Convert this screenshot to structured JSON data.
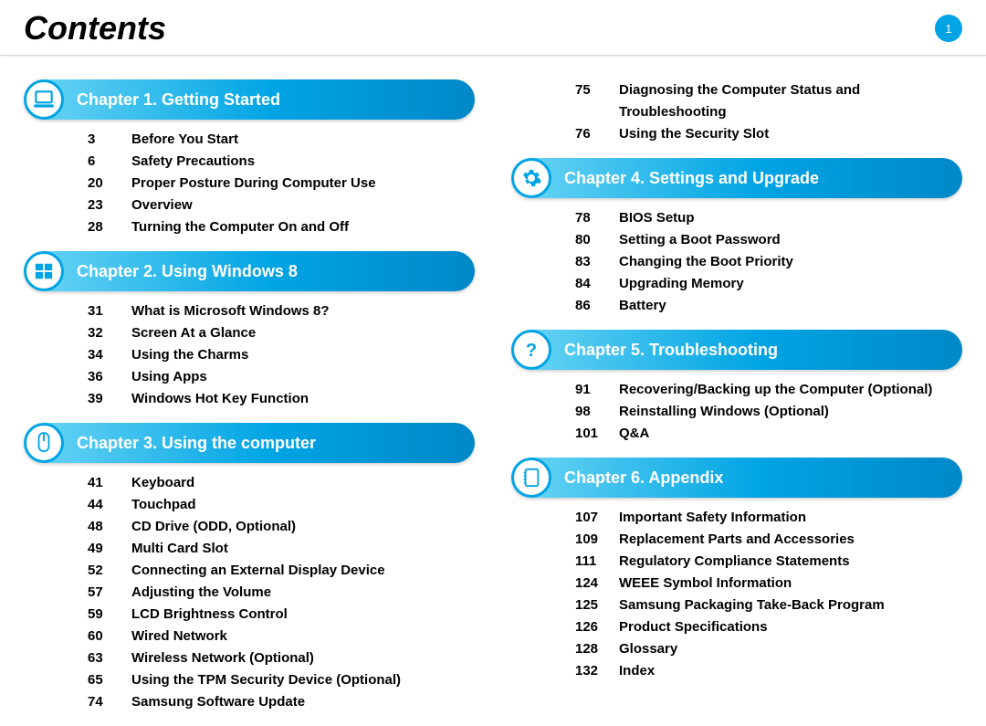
{
  "page_title": "Contents",
  "page_number": "1",
  "colors": {
    "accent": "#00a4e4",
    "bar_gradient_start": "#6dd6f5",
    "bar_gradient_mid": "#00a4e4",
    "bar_gradient_end": "#0088c8",
    "text": "#000000",
    "divider": "#d5d5d5",
    "background": "#ffffff"
  },
  "chapters": {
    "ch1": {
      "title": "Chapter 1. Getting Started",
      "icon": "laptop",
      "entries": [
        {
          "page": "3",
          "label": "Before You Start"
        },
        {
          "page": "6",
          "label": "Safety Precautions"
        },
        {
          "page": "20",
          "label": "Proper Posture During Computer Use"
        },
        {
          "page": "23",
          "label": "Overview"
        },
        {
          "page": "28",
          "label": "Turning the Computer On and Off"
        }
      ]
    },
    "ch2": {
      "title": "Chapter 2. Using Windows 8",
      "icon": "windows",
      "entries": [
        {
          "page": "31",
          "label": "What is Microsoft Windows 8?"
        },
        {
          "page": "32",
          "label": "Screen At a Glance"
        },
        {
          "page": "34",
          "label": "Using the Charms"
        },
        {
          "page": "36",
          "label": "Using Apps"
        },
        {
          "page": "39",
          "label": "Windows Hot Key Function"
        }
      ]
    },
    "ch3": {
      "title": "Chapter 3. Using the computer",
      "icon": "mouse",
      "entries": [
        {
          "page": "41",
          "label": "Keyboard"
        },
        {
          "page": "44",
          "label": "Touchpad"
        },
        {
          "page": "48",
          "label": "CD Drive (ODD, Optional)"
        },
        {
          "page": "49",
          "label": "Multi Card Slot"
        },
        {
          "page": "52",
          "label": "Connecting an External Display Device"
        },
        {
          "page": "57",
          "label": "Adjusting the Volume"
        },
        {
          "page": "59",
          "label": "LCD Brightness Control"
        },
        {
          "page": "60",
          "label": "Wired Network"
        },
        {
          "page": "63",
          "label": "Wireless Network (Optional)"
        },
        {
          "page": "65",
          "label": "Using the TPM Security Device (Optional)"
        },
        {
          "page": "74",
          "label": "Samsung Software Update"
        }
      ]
    },
    "ch3b": {
      "entries": [
        {
          "page": "75",
          "label": "Diagnosing the Computer Status and Troubleshooting"
        },
        {
          "page": "76",
          "label": "Using the Security Slot"
        }
      ]
    },
    "ch4": {
      "title": "Chapter 4. Settings and Upgrade",
      "icon": "gear",
      "entries": [
        {
          "page": "78",
          "label": "BIOS Setup"
        },
        {
          "page": "80",
          "label": "Setting a Boot Password"
        },
        {
          "page": "83",
          "label": "Changing the Boot Priority"
        },
        {
          "page": "84",
          "label": "Upgrading Memory"
        },
        {
          "page": "86",
          "label": "Battery"
        }
      ]
    },
    "ch5": {
      "title": "Chapter 5. Troubleshooting",
      "icon": "question",
      "entries": [
        {
          "page": "91",
          "label": "Recovering/Backing up the Computer (Optional)"
        },
        {
          "page": "98",
          "label": "Reinstalling Windows (Optional)"
        },
        {
          "page": "101",
          "label": "Q&A"
        }
      ]
    },
    "ch6": {
      "title": "Chapter 6. Appendix",
      "icon": "notebook",
      "entries": [
        {
          "page": "107",
          "label": "Important Safety Information"
        },
        {
          "page": "109",
          "label": "Replacement Parts and Accessories"
        },
        {
          "page": "111",
          "label": "Regulatory Compliance Statements"
        },
        {
          "page": "124",
          "label": "WEEE Symbol Information"
        },
        {
          "page": "125",
          "label": "Samsung Packaging Take-Back Program"
        },
        {
          "page": "126",
          "label": "Product Specifications"
        },
        {
          "page": "128",
          "label": "Glossary"
        },
        {
          "page": "132",
          "label": "Index"
        }
      ]
    }
  }
}
